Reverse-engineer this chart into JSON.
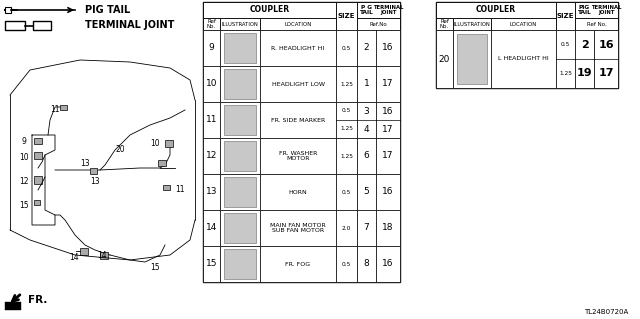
{
  "bg_color": "#ffffff",
  "left_table": {
    "rows": [
      {
        "ref": "9",
        "location": "R. HEADLIGHT HI",
        "size": "0.5",
        "pg_tail": "2",
        "term_joint": "16",
        "two_rows": false
      },
      {
        "ref": "10",
        "location": "HEADLIGHT LOW",
        "size": "1.25",
        "pg_tail": "1",
        "term_joint": "17",
        "two_rows": false
      },
      {
        "ref": "11",
        "location": "FR. SIDE MARKER",
        "size1": "0.5",
        "pg_tail1": "3",
        "term_joint1": "16",
        "size2": "1.25",
        "pg_tail2": "4",
        "term_joint2": "17",
        "two_rows": true
      },
      {
        "ref": "12",
        "location": "FR. WASHER\nMOTOR",
        "size": "1.25",
        "pg_tail": "6",
        "term_joint": "17",
        "two_rows": false
      },
      {
        "ref": "13",
        "location": "HORN",
        "size": "0.5",
        "pg_tail": "5",
        "term_joint": "16",
        "two_rows": false
      },
      {
        "ref": "14",
        "location": "MAIN FAN MOTOR\nSUB FAN MOTOR",
        "size": "2.0",
        "pg_tail": "7",
        "term_joint": "18",
        "two_rows": false
      },
      {
        "ref": "15",
        "location": "FR. FOG",
        "size": "0.5",
        "pg_tail": "8",
        "term_joint": "16",
        "two_rows": false
      }
    ]
  },
  "right_table": {
    "rows": [
      {
        "ref": "20",
        "location": "L HEADLIGHT HI",
        "size1": "0.5",
        "pg_tail1": "2",
        "term_joint1": "16",
        "size2": "1.25",
        "pg_tail2": "19",
        "term_joint2": "17"
      }
    ]
  },
  "pig_tail_label": "PIG TAIL",
  "terminal_joint_label": "TERMINAL JOINT",
  "diagram_label": "FR.",
  "part_code": "TL24B0720A"
}
